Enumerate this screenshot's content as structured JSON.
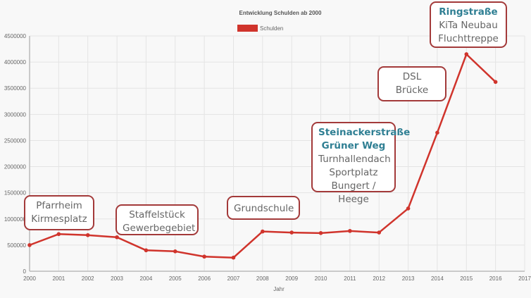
{
  "chart_data": {
    "type": "line",
    "title": "Entwicklung Schulden ab 2000",
    "xlabel": "Jahr",
    "ylabel": "",
    "x": [
      2000,
      2001,
      2002,
      2003,
      2004,
      2005,
      2006,
      2007,
      2008,
      2009,
      2010,
      2011,
      2012,
      2013,
      2014,
      2015,
      2016
    ],
    "xticks": [
      "2000",
      "2001",
      "2002",
      "2003",
      "2004",
      "2005",
      "2006",
      "2007",
      "2008",
      "2009",
      "2010",
      "2011",
      "2012",
      "2013",
      "2014",
      "2015",
      "2016",
      "2017"
    ],
    "xlim": [
      2000,
      2017
    ],
    "ylim": [
      0,
      4500000
    ],
    "yticks": [
      "0",
      "500000",
      "1000000",
      "1500000",
      "2000000",
      "2500000",
      "3000000",
      "3500000",
      "4000000",
      "4500000"
    ],
    "grid": true,
    "legend_position": "top",
    "series": [
      {
        "name": "Schulden",
        "color": "#d0342c",
        "values": [
          500000,
          710000,
          690000,
          650000,
          400000,
          380000,
          280000,
          260000,
          760000,
          740000,
          730000,
          770000,
          740000,
          1200000,
          2650000,
          4150000,
          3620000
        ]
      }
    ],
    "annotations": [
      {
        "highlight": [],
        "lines": [
          "Pfarrheim",
          "Kirmesplatz"
        ]
      },
      {
        "highlight": [],
        "lines": [
          "Staffelstück",
          "Gewerbegebiet"
        ]
      },
      {
        "highlight": [],
        "lines": [
          "Grundschule"
        ]
      },
      {
        "highlight": [
          "Steinackerstraße",
          "Grüner Weg"
        ],
        "lines": [
          "Turnhallendach",
          "Sportplatz",
          "Bungert / Heege"
        ]
      },
      {
        "highlight": [],
        "lines": [
          "DSL",
          "Brücke"
        ]
      },
      {
        "highlight": [
          "Ringstraße"
        ],
        "lines": [
          "KiTa Neubau",
          "Fluchttreppe"
        ]
      }
    ]
  }
}
